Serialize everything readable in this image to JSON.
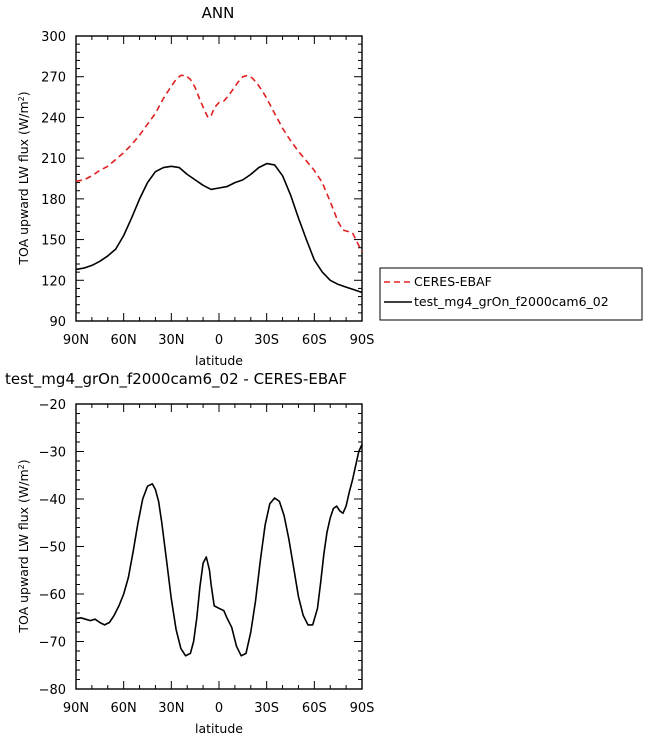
{
  "chart_data": [
    {
      "type": "line",
      "title": "ANN",
      "xlabel": "latitude",
      "ylabel": "TOA upward LW flux (W/m²)",
      "xlim": [
        -90,
        90
      ],
      "ylim": [
        90,
        300
      ],
      "x_ticks": [
        -90,
        -60,
        -30,
        0,
        30,
        60,
        90
      ],
      "x_tick_labels": [
        "90N",
        "60N",
        "30N",
        "0",
        "30S",
        "60S",
        "90S"
      ],
      "y_ticks": [
        90,
        120,
        150,
        180,
        210,
        240,
        270,
        300
      ],
      "y_tick_labels": [
        "90",
        "120",
        "150",
        "180",
        "210",
        "240",
        "270",
        "300"
      ],
      "legend": {
        "position": "right",
        "entries": [
          "CERES-EBAF",
          "test_mg4_grOn_f2000cam6_02"
        ]
      },
      "series": [
        {
          "name": "CERES-EBAF",
          "color": "#e02020",
          "style": "dashed",
          "x": [
            -90,
            -85,
            -80,
            -75,
            -70,
            -65,
            -60,
            -55,
            -50,
            -45,
            -40,
            -35,
            -30,
            -27,
            -24,
            -21,
            -18,
            -15,
            -12,
            -9,
            -7,
            -5,
            -3,
            0,
            3,
            6,
            9,
            12,
            15,
            18,
            21,
            24,
            27,
            30,
            35,
            40,
            45,
            50,
            55,
            60,
            65,
            70,
            75,
            78,
            81,
            84,
            87,
            90
          ],
          "y": [
            193,
            194,
            197,
            201,
            204,
            209,
            214,
            220,
            227,
            235,
            243,
            254,
            263,
            268,
            271,
            271,
            268,
            262,
            253,
            245,
            240,
            241,
            247,
            251,
            252,
            256,
            261,
            266,
            270,
            271,
            269,
            265,
            260,
            254,
            243,
            232,
            223,
            215,
            208,
            201,
            192,
            178,
            163,
            157,
            156,
            155,
            148,
            141
          ]
        },
        {
          "name": "test_mg4_grOn_f2000cam6_02",
          "color": "#000000",
          "style": "solid",
          "x": [
            -90,
            -85,
            -80,
            -75,
            -70,
            -65,
            -60,
            -55,
            -50,
            -45,
            -40,
            -35,
            -30,
            -25,
            -20,
            -15,
            -10,
            -5,
            0,
            5,
            10,
            15,
            20,
            25,
            30,
            35,
            40,
            45,
            50,
            55,
            60,
            65,
            70,
            75,
            80,
            85,
            90
          ],
          "y": [
            128,
            129,
            131,
            134,
            138,
            143,
            153,
            166,
            180,
            192,
            200,
            203,
            204,
            203,
            198,
            194,
            190,
            187,
            188,
            189,
            192,
            194,
            198,
            203,
            206,
            205,
            197,
            183,
            166,
            150,
            135,
            126,
            120,
            117,
            115,
            113,
            111
          ]
        }
      ]
    },
    {
      "type": "line",
      "title": "test_mg4_grOn_f2000cam6_02 - CERES-EBAF",
      "xlabel": "latitude",
      "ylabel": "TOA upward LW flux (W/m²)",
      "xlim": [
        -90,
        90
      ],
      "ylim": [
        -80,
        -20
      ],
      "x_ticks": [
        -90,
        -60,
        -30,
        0,
        30,
        60,
        90
      ],
      "x_tick_labels": [
        "90N",
        "60N",
        "30N",
        "0",
        "30S",
        "60S",
        "90S"
      ],
      "y_ticks": [
        -80,
        -70,
        -60,
        -50,
        -40,
        -30,
        -20
      ],
      "y_tick_labels": [
        "−80",
        "−70",
        "−60",
        "−50",
        "−40",
        "−30",
        "−20"
      ],
      "series": [
        {
          "color": "#000000",
          "style": "solid",
          "x": [
            -90,
            -87,
            -84,
            -81,
            -78,
            -75,
            -72,
            -69,
            -66,
            -63,
            -60,
            -57,
            -54,
            -51,
            -48,
            -45,
            -42,
            -40,
            -38,
            -36,
            -33,
            -30,
            -27,
            -24,
            -21,
            -18,
            -16,
            -14,
            -12,
            -10,
            -8,
            -6,
            -5,
            -3,
            0,
            3,
            5,
            8,
            11,
            14,
            17,
            20,
            23,
            26,
            29,
            32,
            35,
            38,
            41,
            44,
            47,
            50,
            53,
            56,
            59,
            62,
            64,
            66,
            68,
            70,
            72,
            74,
            76,
            78,
            80,
            82,
            84,
            86,
            88,
            90
          ],
          "y": [
            -65.2,
            -65.0,
            -65.3,
            -65.6,
            -65.3,
            -66.0,
            -66.5,
            -66.0,
            -64.5,
            -62.5,
            -60.0,
            -56.5,
            -51.0,
            -45.0,
            -40.0,
            -37.3,
            -36.8,
            -38.0,
            -40.5,
            -45.0,
            -53.0,
            -61.0,
            -67.5,
            -71.5,
            -73.0,
            -72.5,
            -70.0,
            -65.0,
            -58.5,
            -53.5,
            -52.2,
            -55.0,
            -58.0,
            -62.5,
            -63.0,
            -63.5,
            -65.0,
            -67.0,
            -71.0,
            -73.0,
            -72.5,
            -68.0,
            -61.5,
            -53.0,
            -45.5,
            -41.0,
            -39.8,
            -40.5,
            -43.5,
            -48.5,
            -54.5,
            -60.5,
            -64.5,
            -66.5,
            -66.5,
            -63.0,
            -57.5,
            -51.5,
            -47.0,
            -44.0,
            -42.0,
            -41.5,
            -42.5,
            -43.0,
            -41.5,
            -38.5,
            -36.0,
            -33.0,
            -30.0,
            -28.5
          ]
        }
      ]
    }
  ]
}
